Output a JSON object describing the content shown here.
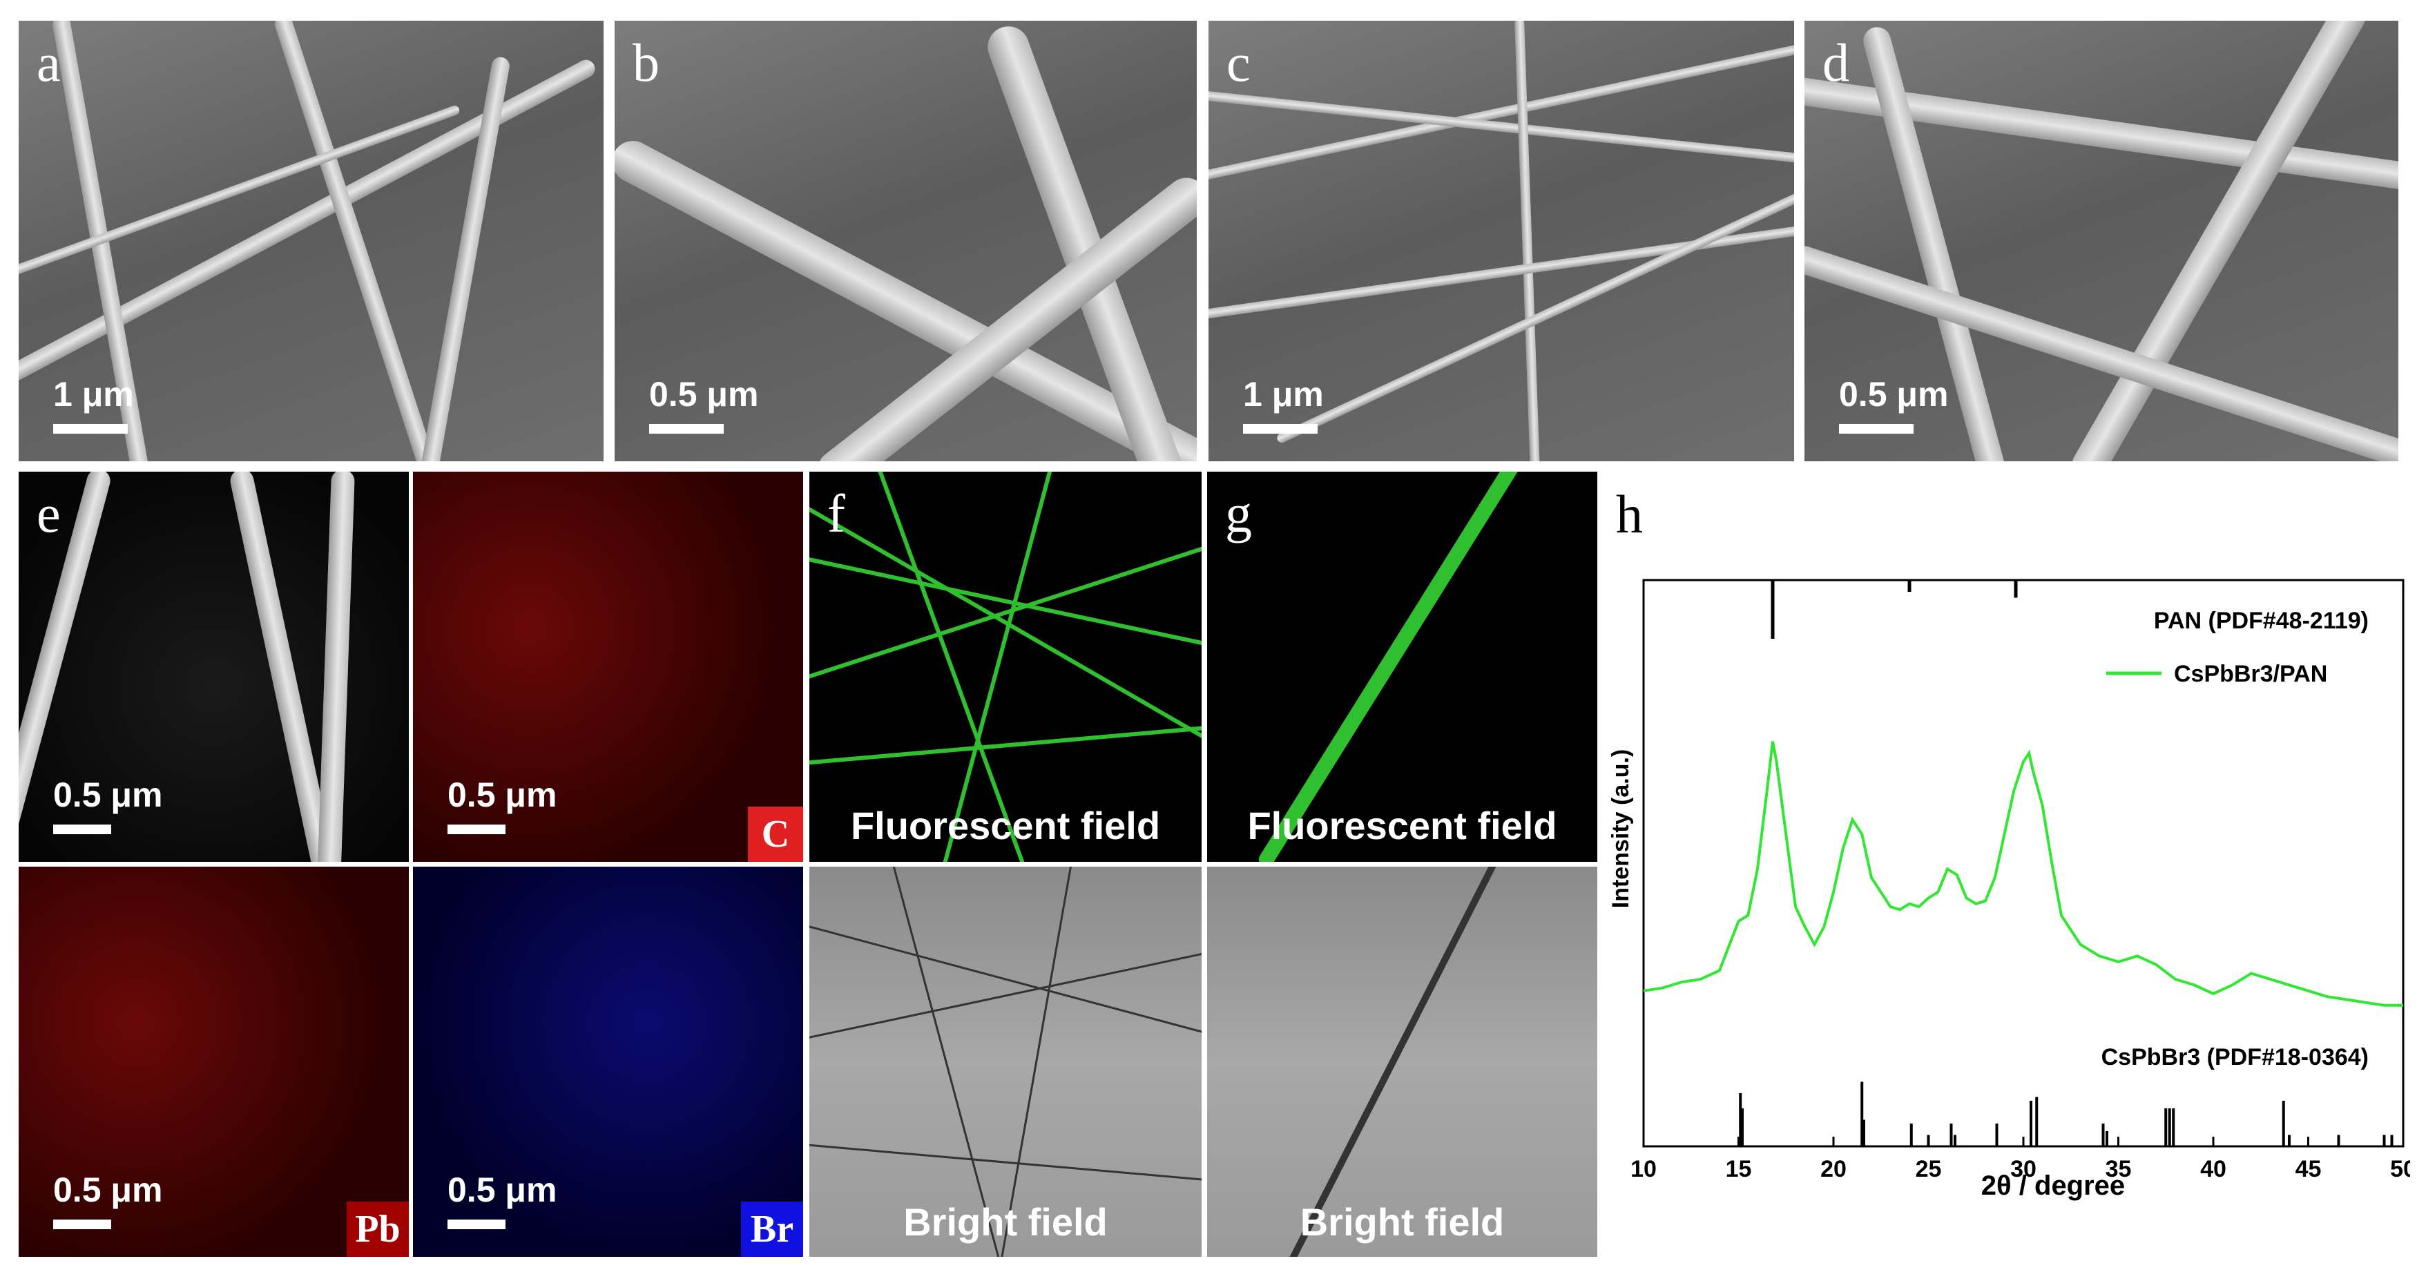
{
  "panels": {
    "a": {
      "letter": "a",
      "scale": "1 μm"
    },
    "b": {
      "letter": "b",
      "scale": "0.5 μm"
    },
    "c": {
      "letter": "c",
      "scale": "1 μm"
    },
    "d": {
      "letter": "d",
      "scale": "0.5 μm"
    },
    "e": {
      "letter": "e",
      "scale": "0.5 μm"
    },
    "e_c": {
      "scale": "0.5 μm",
      "element": "C"
    },
    "e_pb": {
      "scale": "0.5 μm",
      "element": "Pb"
    },
    "e_br": {
      "scale": "0.5 μm",
      "element": "Br"
    },
    "f": {
      "letter": "f",
      "fluorescent": "Fluorescent field",
      "bright": "Bright field"
    },
    "g": {
      "letter": "g",
      "fluorescent": "Fluorescent field",
      "bright": "Bright field"
    },
    "h": {
      "letter": "h"
    }
  },
  "colors": {
    "element_C": "#e02020",
    "element_Pb": "#a00000",
    "element_Br": "#1010e0",
    "xrd_line": "#33e633"
  },
  "chart_data": {
    "type": "line",
    "xlabel": "2θ / degree",
    "ylabel": "Intensity (a.u.)",
    "xlim": [
      10,
      50
    ],
    "xticks": [
      10,
      15,
      20,
      25,
      30,
      35,
      40,
      45,
      50
    ],
    "legend_position": "top-right",
    "top_reference": {
      "label": "PAN (PDF#48-2119)",
      "peaks": [
        {
          "x": 16.8,
          "h": 1.0
        },
        {
          "x": 24.0,
          "h": 0.2
        },
        {
          "x": 29.6,
          "h": 0.3
        }
      ]
    },
    "series": [
      {
        "name": "CsPbBr3/PAN",
        "x": [
          10,
          11,
          12,
          13,
          14,
          15,
          15.5,
          16,
          16.5,
          16.8,
          17,
          17.5,
          18,
          18.5,
          19,
          19.5,
          20,
          20.5,
          21,
          21.5,
          22,
          22.5,
          23,
          23.5,
          24,
          24.5,
          25,
          25.5,
          26,
          26.5,
          27,
          27.5,
          28,
          28.5,
          29,
          29.5,
          30,
          30.3,
          30.5,
          31,
          31.5,
          32,
          33,
          34,
          35,
          36,
          37,
          38,
          39,
          40,
          41,
          42,
          43,
          44,
          45,
          46,
          47,
          48,
          49,
          50
        ],
        "y": [
          0.06,
          0.07,
          0.09,
          0.1,
          0.13,
          0.3,
          0.32,
          0.48,
          0.75,
          0.92,
          0.85,
          0.6,
          0.35,
          0.28,
          0.22,
          0.28,
          0.4,
          0.55,
          0.65,
          0.6,
          0.45,
          0.4,
          0.35,
          0.34,
          0.36,
          0.35,
          0.38,
          0.4,
          0.48,
          0.46,
          0.38,
          0.36,
          0.37,
          0.45,
          0.6,
          0.75,
          0.85,
          0.88,
          0.82,
          0.7,
          0.5,
          0.32,
          0.22,
          0.18,
          0.16,
          0.18,
          0.15,
          0.1,
          0.08,
          0.05,
          0.08,
          0.12,
          0.1,
          0.08,
          0.06,
          0.04,
          0.03,
          0.02,
          0.01,
          0.01
        ]
      }
    ],
    "bottom_reference": {
      "label": "CsPbBr3 (PDF#18-0364)",
      "peaks": [
        {
          "x": 15.1,
          "h": 0.7
        },
        {
          "x": 15.2,
          "h": 0.5
        },
        {
          "x": 21.5,
          "h": 0.85
        },
        {
          "x": 21.6,
          "h": 0.35
        },
        {
          "x": 24.1,
          "h": 0.3
        },
        {
          "x": 25.0,
          "h": 0.15
        },
        {
          "x": 26.2,
          "h": 0.3
        },
        {
          "x": 26.4,
          "h": 0.15
        },
        {
          "x": 28.6,
          "h": 0.3
        },
        {
          "x": 30.4,
          "h": 0.6
        },
        {
          "x": 30.7,
          "h": 0.65
        },
        {
          "x": 34.2,
          "h": 0.3
        },
        {
          "x": 34.4,
          "h": 0.2
        },
        {
          "x": 37.5,
          "h": 0.5
        },
        {
          "x": 37.7,
          "h": 0.5
        },
        {
          "x": 37.9,
          "h": 0.5
        },
        {
          "x": 43.7,
          "h": 0.6
        },
        {
          "x": 44.0,
          "h": 0.15
        },
        {
          "x": 46.6,
          "h": 0.15
        },
        {
          "x": 49.0,
          "h": 0.15
        },
        {
          "x": 49.4,
          "h": 0.15
        }
      ]
    }
  }
}
